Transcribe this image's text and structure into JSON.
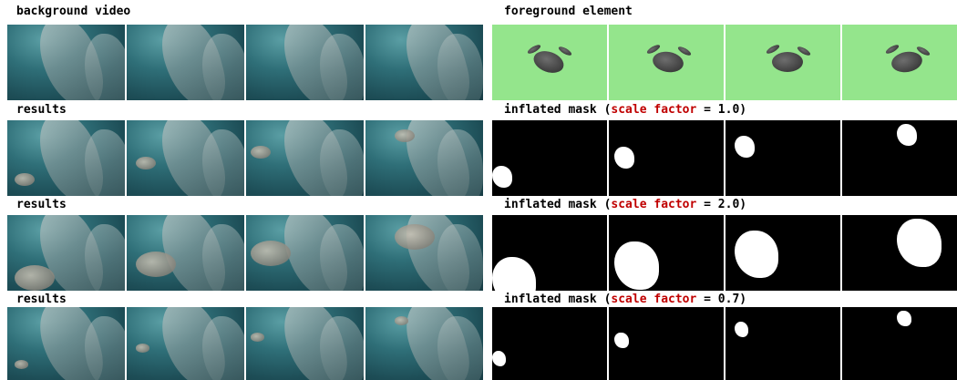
{
  "left": {
    "sections": [
      {
        "label": "background video"
      },
      {
        "label": "results"
      },
      {
        "label": "results"
      },
      {
        "label": "results"
      }
    ]
  },
  "right": {
    "sections": [
      {
        "label_parts": [
          "foreground element"
        ]
      },
      {
        "label_parts": [
          "inflated mask (",
          "scale factor",
          " = 1.0)"
        ]
      },
      {
        "label_parts": [
          "inflated mask (",
          "scale factor",
          " = 2.0)"
        ]
      },
      {
        "label_parts": [
          "inflated mask (",
          "scale factor",
          " = 0.7)"
        ]
      }
    ]
  }
}
